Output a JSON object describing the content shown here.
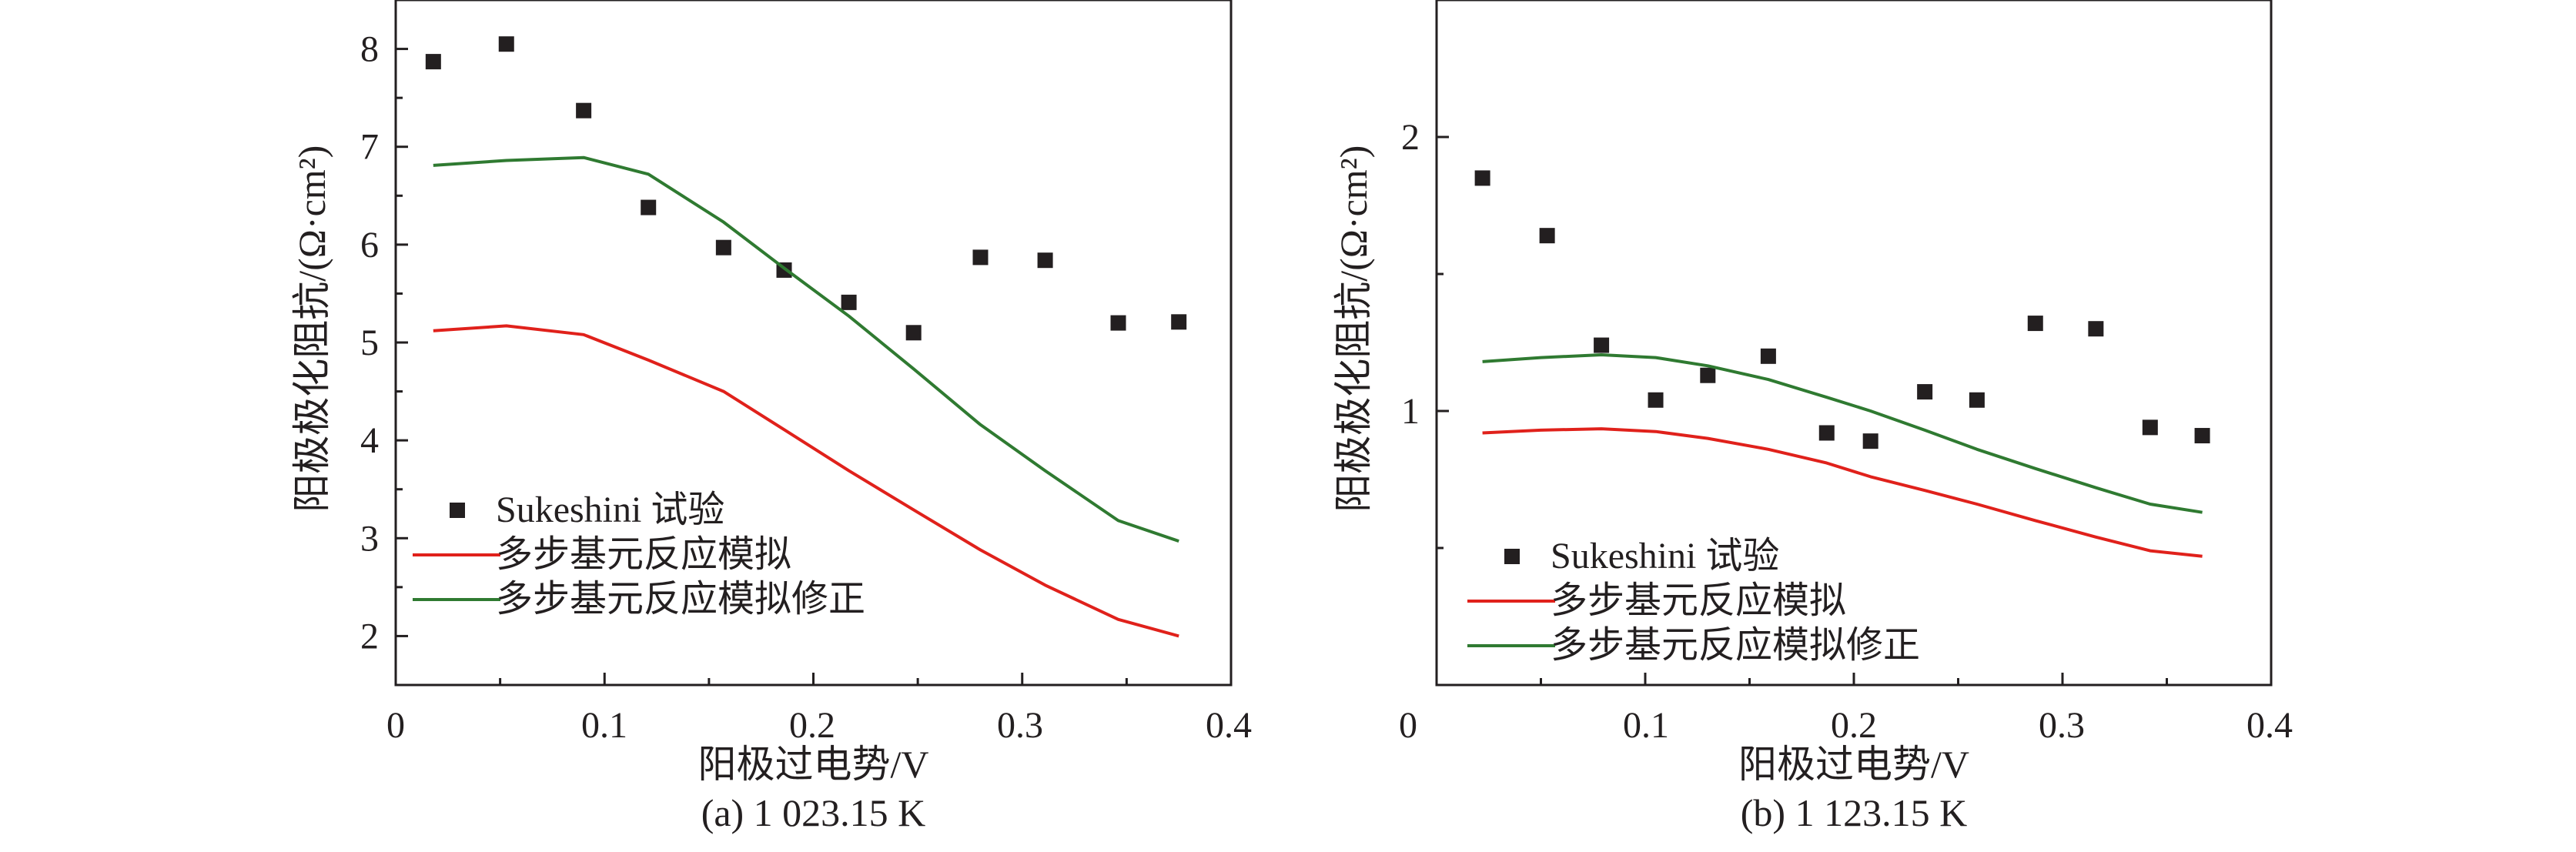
{
  "chart_data": [
    {
      "type": "scatter",
      "panel_label": "(a) 1 023.15 K",
      "xlabel": "阳极过电势/V",
      "ylabel": "阳极极化阻抗/(Ω·cm²)",
      "xlim": [
        0,
        0.4
      ],
      "ylim": [
        1.5,
        8.5
      ],
      "xticks": [
        "0",
        "0.1",
        "0.2",
        "0.3",
        "0.4"
      ],
      "yticks": [
        "2",
        "3",
        "4",
        "5",
        "6",
        "7",
        "8"
      ],
      "legend_position": "lower-left",
      "series": [
        {
          "name": "Sukeshini 试验",
          "kind": "markers",
          "color": "#231f20",
          "x": [
            0.018,
            0.053,
            0.09,
            0.121,
            0.157,
            0.186,
            0.217,
            0.248,
            0.28,
            0.311,
            0.346,
            0.375
          ],
          "y": [
            7.87,
            8.05,
            7.37,
            6.38,
            5.97,
            5.74,
            5.41,
            5.1,
            5.87,
            5.84,
            5.2,
            5.21
          ]
        },
        {
          "name": "多步基元反应模拟",
          "kind": "line",
          "color": "#e0211b",
          "x": [
            0.018,
            0.053,
            0.09,
            0.121,
            0.157,
            0.186,
            0.217,
            0.248,
            0.28,
            0.311,
            0.346,
            0.375
          ],
          "y": [
            5.12,
            5.17,
            5.08,
            4.82,
            4.5,
            4.11,
            3.69,
            3.29,
            2.88,
            2.52,
            2.17,
            2.0
          ]
        },
        {
          "name": "多步基元反应模拟修正",
          "kind": "line",
          "color": "#2f7a31",
          "x": [
            0.018,
            0.053,
            0.09,
            0.121,
            0.157,
            0.186,
            0.217,
            0.248,
            0.28,
            0.311,
            0.346,
            0.375
          ],
          "y": [
            6.81,
            6.86,
            6.89,
            6.72,
            6.23,
            5.76,
            5.27,
            4.73,
            4.16,
            3.69,
            3.18,
            2.97
          ]
        }
      ]
    },
    {
      "type": "scatter",
      "panel_label": "(b) 1 123.15 K",
      "xlabel": "阳极过电势/V",
      "ylabel": "阳极极化阻抗/(Ω·cm²)",
      "xlim": [
        0,
        0.4
      ],
      "ylim": [
        0.0,
        2.5
      ],
      "xticks": [
        "0",
        "0.1",
        "0.2",
        "0.3",
        "0.4"
      ],
      "yticks": [
        "1",
        "2"
      ],
      "legend_position": "lower-left",
      "series": [
        {
          "name": "Sukeshini 试验",
          "kind": "markers",
          "color": "#231f20",
          "x": [
            0.022,
            0.053,
            0.079,
            0.105,
            0.13,
            0.159,
            0.187,
            0.208,
            0.234,
            0.259,
            0.287,
            0.316,
            0.342,
            0.367
          ],
          "y": [
            1.85,
            1.64,
            1.24,
            1.04,
            1.13,
            1.2,
            0.92,
            0.89,
            1.07,
            1.04,
            1.32,
            1.3,
            0.94,
            0.91
          ]
        },
        {
          "name": "多步基元反应模拟",
          "kind": "line",
          "color": "#e0211b",
          "x": [
            0.022,
            0.05,
            0.079,
            0.105,
            0.13,
            0.159,
            0.187,
            0.208,
            0.234,
            0.259,
            0.287,
            0.316,
            0.342,
            0.367
          ],
          "y": [
            0.92,
            0.93,
            0.935,
            0.925,
            0.9,
            0.86,
            0.81,
            0.76,
            0.71,
            0.66,
            0.6,
            0.54,
            0.49,
            0.47
          ]
        },
        {
          "name": "多步基元反应模拟修正",
          "kind": "line",
          "color": "#2f7a31",
          "x": [
            0.022,
            0.05,
            0.079,
            0.105,
            0.13,
            0.159,
            0.187,
            0.208,
            0.234,
            0.259,
            0.287,
            0.316,
            0.342,
            0.367
          ],
          "y": [
            1.18,
            1.195,
            1.205,
            1.195,
            1.165,
            1.115,
            1.05,
            1.0,
            0.93,
            0.86,
            0.79,
            0.72,
            0.66,
            0.63
          ]
        }
      ]
    }
  ]
}
